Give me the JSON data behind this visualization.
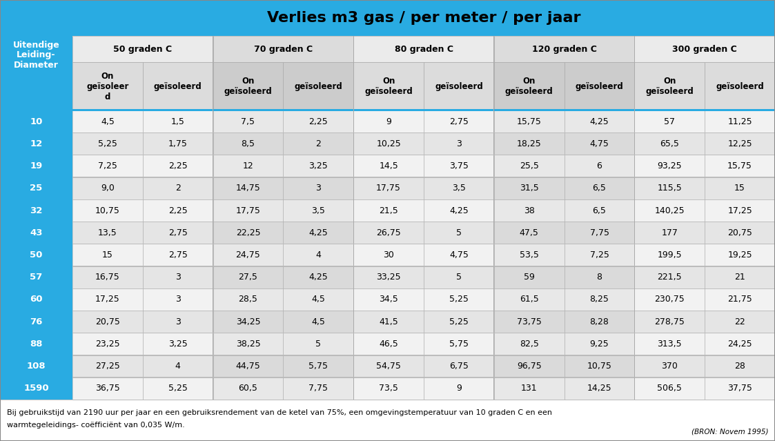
{
  "title": "Verlies m3 gas / per meter / per jaar",
  "left_header_text": "Uitendige\nLeiding-\nDiameter",
  "temp_groups": [
    "50 graden C",
    "70 graden C",
    "80 graden C",
    "120 graden C",
    "300 graden C"
  ],
  "col_headers": [
    "On\ngeïsoleer\nd",
    "geïsoleerd",
    "On\ngeïsoleerd",
    "geïsoleerd",
    "On\ngeïsoleerd",
    "geïsoleerd",
    "On\ngeïsoleerd",
    "geïsoleerd",
    "On\ngeïsoleerd",
    "geïsoleerd"
  ],
  "row_labels": [
    "10",
    "12",
    "19",
    "25",
    "32",
    "43",
    "50",
    "57",
    "60",
    "76",
    "88",
    "108",
    "1590"
  ],
  "table_data": [
    [
      "4,5",
      "1,5",
      "7,5",
      "2,25",
      "9",
      "2,75",
      "15,75",
      "4,25",
      "57",
      "11,25"
    ],
    [
      "5,25",
      "1,75",
      "8,5",
      "2",
      "10,25",
      "3",
      "18,25",
      "4,75",
      "65,5",
      "12,25"
    ],
    [
      "7,25",
      "2,25",
      "12",
      "3,25",
      "14,5",
      "3,75",
      "25,5",
      "6",
      "93,25",
      "15,75"
    ],
    [
      "9,0",
      "2",
      "14,75",
      "3",
      "17,75",
      "3,5",
      "31,5",
      "6,5",
      "115,5",
      "15"
    ],
    [
      "10,75",
      "2,25",
      "17,75",
      "3,5",
      "21,5",
      "4,25",
      "38",
      "6,5",
      "140,25",
      "17,25"
    ],
    [
      "13,5",
      "2,75",
      "22,25",
      "4,25",
      "26,75",
      "5",
      "47,5",
      "7,75",
      "177",
      "20,75"
    ],
    [
      "15",
      "2,75",
      "24,75",
      "4",
      "30",
      "4,75",
      "53,5",
      "7,25",
      "199,5",
      "19,25"
    ],
    [
      "16,75",
      "3",
      "27,5",
      "4,25",
      "33,25",
      "5",
      "59",
      "8",
      "221,5",
      "21"
    ],
    [
      "17,25",
      "3",
      "28,5",
      "4,5",
      "34,5",
      "5,25",
      "61,5",
      "8,25",
      "230,75",
      "21,75"
    ],
    [
      "20,75",
      "3",
      "34,25",
      "4,5",
      "41,5",
      "5,25",
      "73,75",
      "8,28",
      "278,75",
      "22"
    ],
    [
      "23,25",
      "3,25",
      "38,25",
      "5",
      "46,5",
      "5,75",
      "82,5",
      "9,25",
      "313,5",
      "24,25"
    ],
    [
      "27,25",
      "4",
      "44,75",
      "5,75",
      "54,75",
      "6,75",
      "96,75",
      "10,75",
      "370",
      "28"
    ],
    [
      "36,75",
      "5,25",
      "60,5",
      "7,75",
      "73,5",
      "9",
      "131",
      "14,25",
      "506,5",
      "37,75"
    ]
  ],
  "footnote_line1": "Bij gebruikstijd van 2190 uur per jaar en een gebruiksrendement van de ketel van 75%, een omgevingstemperatuur van 10 graden C en een",
  "footnote_line2": "warmtegeleidings- coëfficiënt van 0,035 W/m.",
  "source": "(BRON: Novem 1995)",
  "cyan_color": "#29ABE2",
  "white": "#FFFFFF",
  "header_gray": "#E8E8E8",
  "col_header_gray": "#D8D8D8",
  "data_light": "#F0F0F0",
  "data_dark": "#E0E0E0",
  "border_color": "#AAAAAA",
  "title_text_color": "#000000",
  "left_text_color": "#FFFFFF",
  "row_label_color": "#FFFFFF"
}
